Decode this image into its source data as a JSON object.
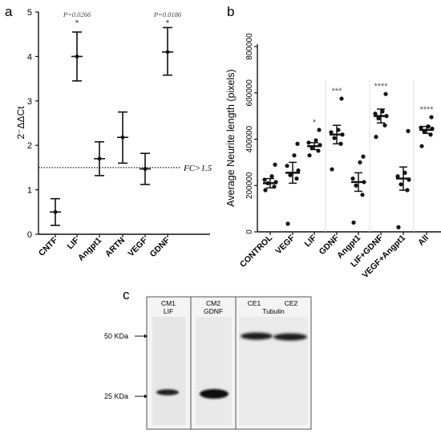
{
  "panels": {
    "a": "a",
    "b": "b",
    "c": "c"
  },
  "chart_data": [
    {
      "panel": "a",
      "type": "scatter",
      "ylabel": "2⁻ΔΔCt",
      "ylim": [
        0,
        5
      ],
      "yticks": [
        0,
        1,
        2,
        3,
        4,
        5
      ],
      "categories": [
        "CNTF",
        "LIF",
        "Angpt1",
        "ARTN",
        "VEGF",
        "GDNF"
      ],
      "series": [
        {
          "mean": [
            0.5,
            4.0,
            1.7,
            2.18,
            1.47,
            4.1
          ],
          "upper": [
            0.8,
            4.55,
            2.08,
            2.75,
            1.82,
            4.65
          ],
          "lower": [
            0.2,
            3.45,
            1.32,
            1.6,
            1.12,
            3.58
          ]
        }
      ],
      "reference_line": {
        "y": 1.5,
        "label": "FC>1.5"
      },
      "annotations": [
        {
          "category": "LIF",
          "p": "P=0.0266",
          "star": "*"
        },
        {
          "category": "GDNF",
          "p": "P=0.0186",
          "star": "*"
        }
      ]
    },
    {
      "panel": "b",
      "type": "scatter",
      "ylabel": "Average Neurite length (pixels)",
      "ylim": [
        0,
        800000
      ],
      "yticks": [
        "0",
        "200000",
        "400000",
        "600000",
        "800000"
      ],
      "categories": [
        "CONTROL",
        "VEGF",
        "LIF",
        "GDNF",
        "Angpt1",
        "LIF+GDNF",
        "VEGF+Angpt1",
        "All"
      ],
      "series": [
        {
          "mean": [
            210000,
            255000,
            370000,
            420000,
            215000,
            500000,
            230000,
            440000
          ],
          "upper": [
            230000,
            300000,
            385000,
            460000,
            255000,
            530000,
            280000,
            455000
          ],
          "lower": [
            190000,
            210000,
            355000,
            380000,
            175000,
            470000,
            180000,
            425000
          ],
          "points": [
            [
              180000,
              195000,
              210000,
              215000,
              225000,
              240000,
              290000
            ],
            [
              35000,
              230000,
              245000,
              265000,
              285000,
              330000,
              380000
            ],
            [
              330000,
              350000,
              365000,
              375000,
              385000,
              395000,
              440000
            ],
            [
              270000,
              380000,
              405000,
              420000,
              430000,
              440000,
              575000
            ],
            [
              40000,
              160000,
              200000,
              215000,
              230000,
              300000,
              325000
            ],
            [
              410000,
              460000,
              490000,
              500000,
              510000,
              520000,
              595000
            ],
            [
              20000,
              180000,
              205000,
              225000,
              240000,
              255000,
              435000
            ],
            [
              370000,
              420000,
              435000,
              445000,
              450000,
              455000,
              495000
            ]
          ]
        }
      ],
      "significance": [
        "",
        "",
        "*",
        "***",
        "",
        "****",
        "",
        "****"
      ]
    }
  ],
  "blot": {
    "lanes": [
      {
        "line1": "CM1",
        "line2": "LIF"
      },
      {
        "line1": "CM2",
        "line2": "GDNF"
      },
      {
        "line1": "CE1",
        "line2": ""
      },
      {
        "line1": "CE2",
        "line2": ""
      }
    ],
    "tubulin_label": "Tubulin",
    "markers": [
      {
        "label": "50 KDa"
      },
      {
        "label": "25 KDa"
      }
    ]
  }
}
